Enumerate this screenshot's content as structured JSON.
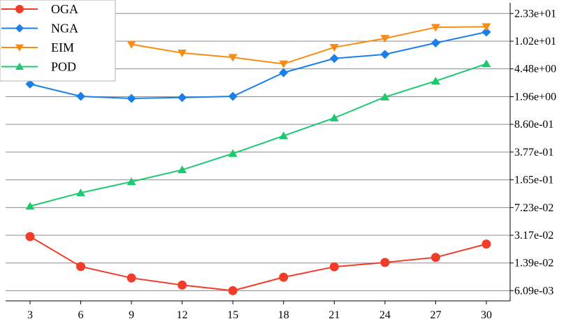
{
  "chart_data": {
    "type": "line",
    "title": "",
    "xlabel": "",
    "ylabel": "",
    "y_scale": "log",
    "y_axis_side": "right",
    "grid": "horizontal",
    "legend_position": "top-left",
    "x": [
      3,
      6,
      9,
      12,
      15,
      18,
      21,
      24,
      27,
      30
    ],
    "x_tick_labels": [
      "3",
      "6",
      "9",
      "12",
      "15",
      "18",
      "21",
      "24",
      "27",
      "30"
    ],
    "y_ticks": [
      0.00609,
      0.0139,
      0.0317,
      0.0723,
      0.165,
      0.377,
      0.86,
      1.96,
      4.48,
      10.2,
      23.3
    ],
    "y_tick_labels": [
      "6.09e-03",
      "1.39e-02",
      "3.17e-02",
      "7.23e-02",
      "1.65e-01",
      "3.77e-01",
      "8.60e-01",
      "1.96e+00",
      "4.48e+00",
      "1.02e+01",
      "2.33e+01"
    ],
    "ylim": [
      0.0045,
      32
    ],
    "series": [
      {
        "name": "OGA",
        "color": "#f03c28",
        "marker": "circle",
        "values": [
          0.0305,
          0.0125,
          0.0089,
          0.0072,
          0.0061,
          0.0091,
          0.0124,
          0.0141,
          0.0164,
          0.0244
        ]
      },
      {
        "name": "NGA",
        "color": "#1a7fe8",
        "marker": "diamond",
        "values": [
          2.85,
          1.98,
          1.86,
          1.91,
          1.98,
          4.0,
          6.1,
          6.9,
          9.7,
          13.4
        ]
      },
      {
        "name": "EIM",
        "color": "#fa8c14",
        "marker": "triangle-down",
        "values": [
          null,
          null,
          9.3,
          7.2,
          6.3,
          5.2,
          8.5,
          11.1,
          15.4,
          15.7
        ]
      },
      {
        "name": "POD",
        "color": "#1ec86e",
        "marker": "triangle-up",
        "values": [
          0.0752,
          0.112,
          0.156,
          0.222,
          0.361,
          0.611,
          1.04,
          1.94,
          3.12,
          5.21
        ]
      }
    ]
  }
}
